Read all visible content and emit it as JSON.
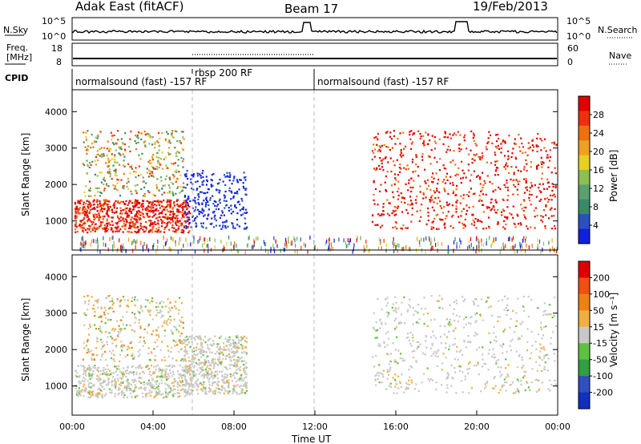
{
  "header": {
    "radar": "Adak East (fitACF)",
    "beam": "Beam 17",
    "date": "19/Feb/2013"
  },
  "strips": {
    "nsky": {
      "label": "N.Sky",
      "ticks": [
        "10^5",
        "10^0"
      ],
      "right_label": "N.Search",
      "right_ticks": [
        "10^5",
        "10^0"
      ]
    },
    "freq": {
      "label_line1": "Freq.",
      "label_line2": "[MHz]",
      "ticks": [
        "18",
        "8"
      ],
      "right_label": "Nave",
      "right_ticks": [
        "60",
        "0"
      ]
    },
    "cpid": {
      "label": "CPID",
      "segments": [
        {
          "text": "normalsound (fast) -157 RF",
          "start_hour": 0,
          "end_hour": 12
        },
        {
          "text": "rbsp 200 RF",
          "start_hour": 6,
          "end_hour": 12
        },
        {
          "text": "normalsound (fast) -157 RF",
          "start_hour": 12,
          "end_hour": 24
        }
      ]
    }
  },
  "chart_data": [
    {
      "type": "heatmap",
      "name": "power",
      "ylabel": "Slant Range [km]",
      "ylim": [
        200,
        4600
      ],
      "y_ticks": [
        1000,
        2000,
        3000,
        4000
      ],
      "colorbar": {
        "label": "Power [dB]",
        "range": [
          0,
          32
        ],
        "ticks": [
          "4",
          "8",
          "12",
          "16",
          "20",
          "24",
          "28"
        ],
        "colors": [
          "#1020e0",
          "#2a50c0",
          "#3a8a6a",
          "#5aa070",
          "#8cc050",
          "#e8d020",
          "#f0a020",
          "#f07010",
          "#ee3010",
          "#e00000"
        ]
      },
      "regions": [
        {
          "x": [
            0.1,
            5.8
          ],
          "y": [
            700,
            1600
          ],
          "level": "high"
        },
        {
          "x": [
            0.5,
            5.5
          ],
          "y": [
            1700,
            3500
          ],
          "level": "mixed"
        },
        {
          "x": [
            5.5,
            8.6
          ],
          "y": [
            800,
            2400
          ],
          "level": "low"
        },
        {
          "x": [
            14.8,
            23.9
          ],
          "y": [
            800,
            3500
          ],
          "level": "high"
        },
        {
          "x": [
            0,
            24
          ],
          "y": [
            200,
            600
          ],
          "level": "noise"
        }
      ]
    },
    {
      "type": "heatmap",
      "name": "velocity",
      "ylabel": "Slant Range [km]",
      "xlabel": "Time UT",
      "ylim": [
        200,
        4600
      ],
      "y_ticks": [
        1000,
        2000,
        3000,
        4000
      ],
      "x_ticks": [
        "00:00",
        "04:00",
        "08:00",
        "12:00",
        "16:00",
        "20:00",
        "00:00"
      ],
      "x_range_hours": [
        0,
        24
      ],
      "colorbar": {
        "label": "Velocity [m s⁻¹]",
        "ticks": [
          "200",
          "100",
          "50",
          "15",
          "-15",
          "-50",
          "-100",
          "-200"
        ],
        "colors": [
          "#1030c0",
          "#3050c0",
          "#30a040",
          "#60c040",
          "#c8c8c8",
          "#f0b040",
          "#f08010",
          "#f05010",
          "#e00000"
        ]
      },
      "regions": [
        {
          "x": [
            0.1,
            5.8
          ],
          "y": [
            700,
            1600
          ],
          "level": "ground"
        },
        {
          "x": [
            0.5,
            5.5
          ],
          "y": [
            1700,
            3500
          ],
          "level": "mixed"
        },
        {
          "x": [
            5.5,
            8.6
          ],
          "y": [
            800,
            2400
          ],
          "level": "ground"
        },
        {
          "x": [
            14.8,
            23.9
          ],
          "y": [
            800,
            3500
          ],
          "level": "ground"
        }
      ]
    }
  ]
}
